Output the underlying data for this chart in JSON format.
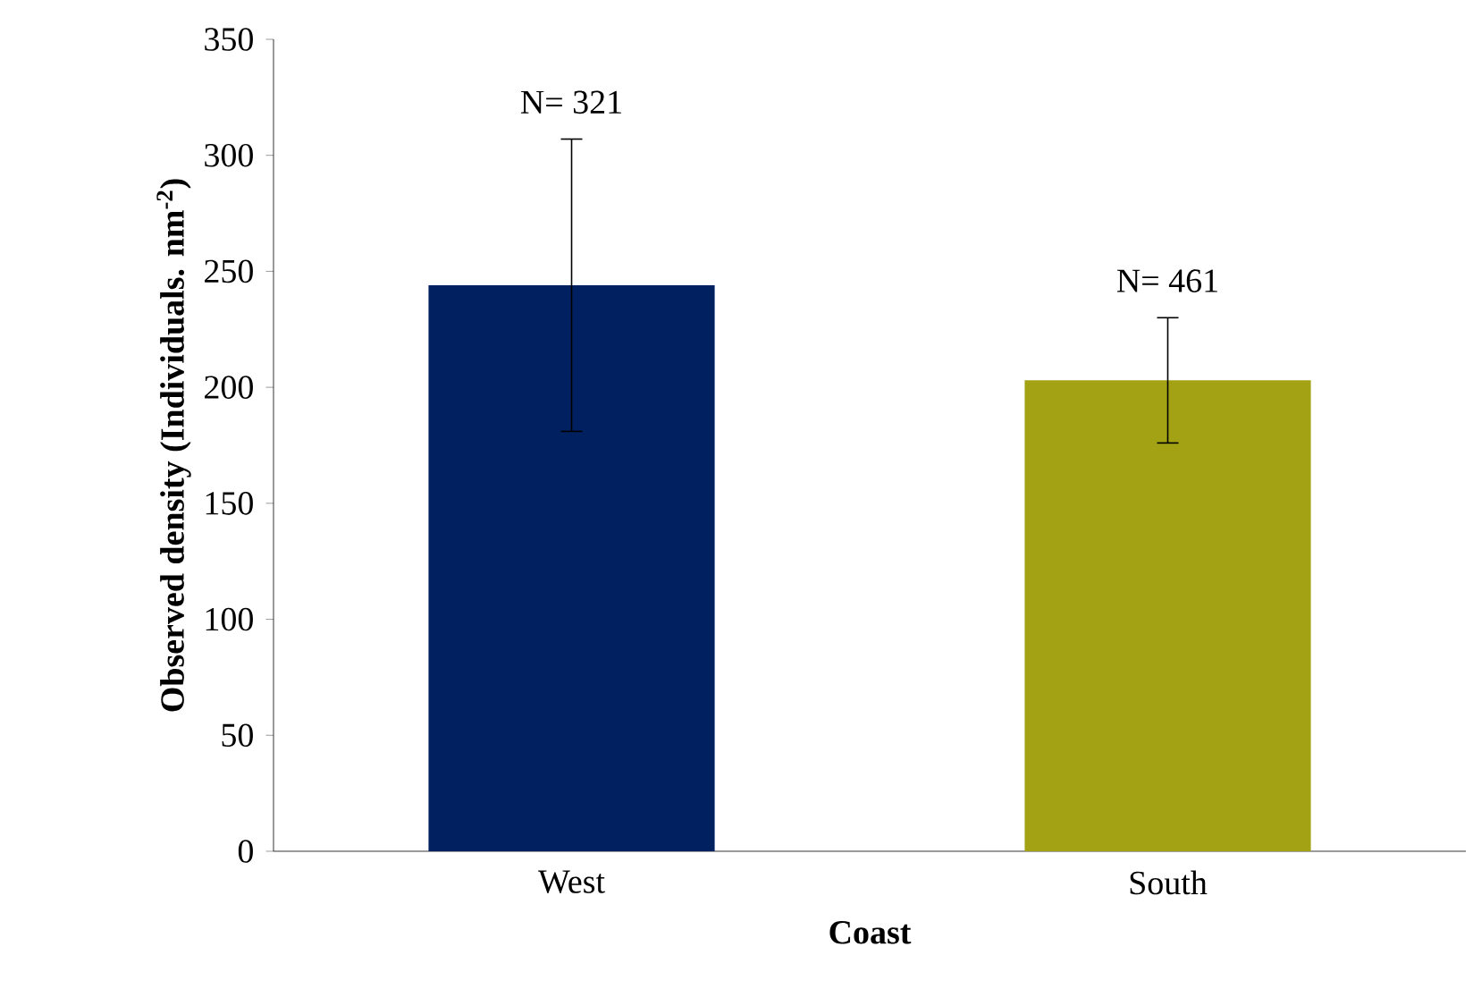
{
  "chart_data": {
    "type": "bar",
    "xlabel": "Coast",
    "ylabel": "Observed density (Individuals. nm$^{-2}$)",
    "categories": [
      "West",
      "South"
    ],
    "values": [
      244,
      203
    ],
    "colors": [
      "#002060",
      "#a2a214"
    ],
    "errors": [
      63,
      27
    ],
    "ylim": [
      0,
      350
    ],
    "yticks": [
      0,
      50,
      100,
      150,
      200,
      250,
      300,
      350
    ],
    "grid": false,
    "annotations": [
      {
        "text": "N= 321",
        "x": "West",
        "y": 307
      },
      {
        "text": "N= 461",
        "x": "South",
        "y": 230
      }
    ]
  }
}
